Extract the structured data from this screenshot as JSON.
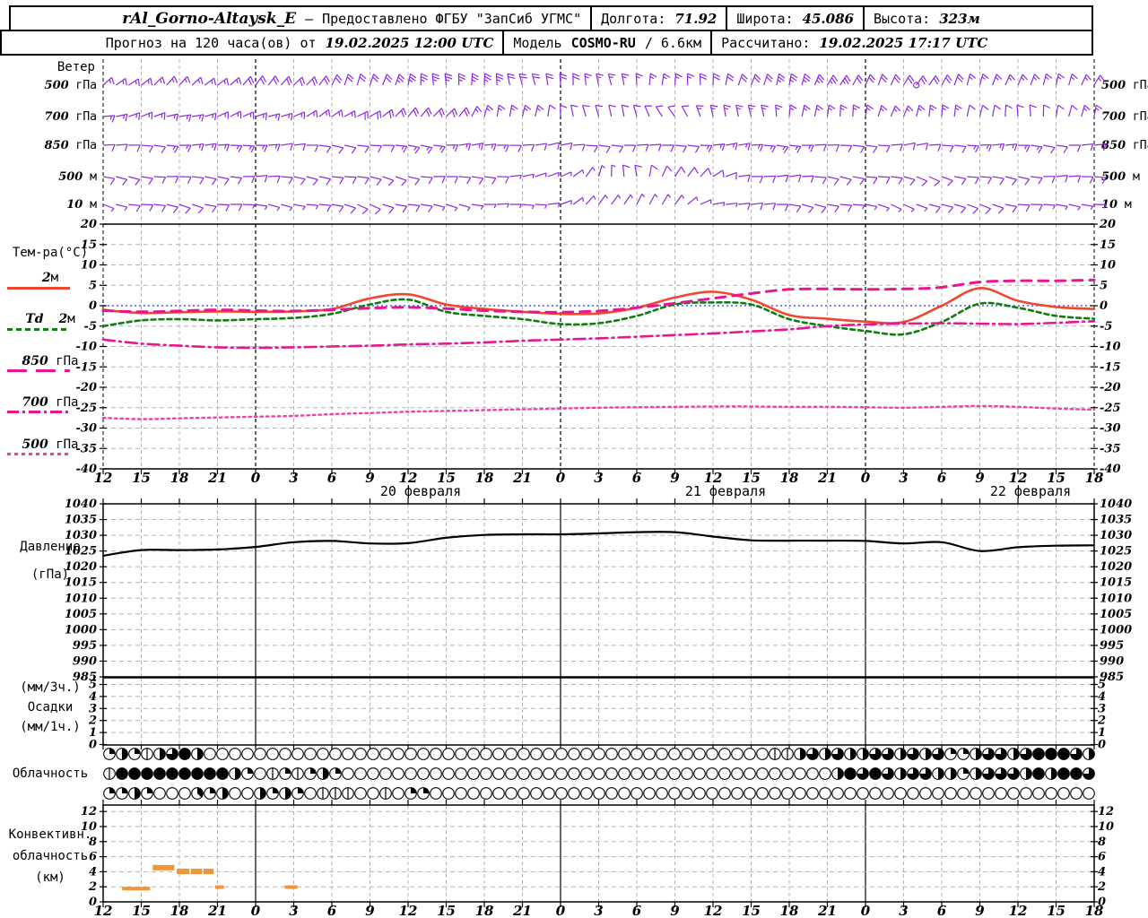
{
  "header": {
    "row1": {
      "station": "rAl_Gorno-Altaysk_E",
      "sep": "—",
      "provider": "Предоставлено ФГБУ \"ЗапСиб УГМС\"",
      "lon_label": "Долгота:",
      "lon": "71.92",
      "lat_label": "Широта:",
      "lat": "45.086",
      "alt_label": "Высота:",
      "alt": "323м"
    },
    "row2": {
      "forecast_label": "Прогноз на 120 часа(ов) от",
      "run_time": "19.02.2025 12:00 UTC",
      "model_label": "Модель",
      "model": "COSMO-RU",
      "model_res": "/ 6.6км",
      "calc_label": "Рассчитано:",
      "calc_time": "19.02.2025 17:17 UTC"
    }
  },
  "panels": {
    "wind": {
      "title": "Ветер",
      "levels": [
        "500 гПа",
        "700 гПа",
        "850 гПа",
        "500 м",
        "10 м"
      ]
    },
    "temp": {
      "title": "Тем-ра(°C)",
      "legend": [
        {
          "pre": "",
          "num": "2",
          "unit": "м"
        },
        {
          "pre": "Td",
          "num": "2",
          "unit": "м"
        },
        {
          "pre": "",
          "num": "850",
          "unit": "гПа"
        },
        {
          "pre": "",
          "num": "700",
          "unit": "гПа"
        },
        {
          "pre": "",
          "num": "500",
          "unit": "гПа"
        }
      ]
    },
    "pressure": {
      "title1": "Давление",
      "title2": "(гПа)"
    },
    "precip": {
      "title1": "(мм/3ч.)",
      "title2": "Осадки",
      "title3": "(мм/1ч.)"
    },
    "cloud": {
      "title": "Облачность"
    },
    "conv": {
      "title1": "Конвективн.",
      "title2": "облачность",
      "title3": "(км)"
    }
  },
  "axis": {
    "hour_labels": [
      "12",
      "15",
      "18",
      "21",
      "0",
      "3",
      "6",
      "9",
      "12",
      "15",
      "18",
      "21",
      "0",
      "3",
      "6",
      "9",
      "12",
      "15",
      "18",
      "21",
      "0",
      "3",
      "6",
      "9",
      "12",
      "15",
      "18"
    ],
    "midnight_indices": [
      4,
      12,
      20
    ],
    "date_labels": [
      {
        "label": "20 февраля",
        "hour": 24
      },
      {
        "label": "21 февраля",
        "hour": 48
      },
      {
        "label": "22 февраля",
        "hour": 72
      }
    ],
    "temp_ticks": [
      20,
      15,
      10,
      5,
      0,
      -5,
      -10,
      -15,
      -20,
      -25,
      -30,
      -35,
      -40
    ],
    "pressure_ticks": [
      1040,
      1035,
      1030,
      1025,
      1020,
      1015,
      1010,
      1005,
      1000,
      995,
      990,
      985
    ],
    "precip_ticks": [
      5,
      4,
      3,
      2,
      1,
      0
    ],
    "conv_ticks": [
      12,
      10,
      8,
      6,
      4,
      2,
      0
    ]
  },
  "colors": {
    "barb": "#8a2be2",
    "t2m": "#f0482c",
    "td2m": "#0f7d0f",
    "pink": "#ea1690",
    "pink_light": "#f23fa5",
    "zero_line": "#4858f8",
    "grid": "#b4b4b4",
    "pressure_line": "#000000",
    "conv_bar": "#f0953a",
    "frame": "#000000"
  },
  "chart_data": [
    {
      "id": "temperature",
      "type": "line",
      "title": "Тем-ра(°C)",
      "ylim": [
        -40,
        20
      ],
      "x_start": "19.02.2025 12:00 UTC",
      "x_step_hours": 3,
      "grid": true,
      "series": [
        {
          "name": "2м",
          "color": "#f0482c",
          "dash": "",
          "width": 2.6,
          "values": [
            -1,
            -1.8,
            -1.6,
            -1.4,
            -1.5,
            -1.4,
            -0.8,
            1.8,
            2.8,
            0.3,
            -0.8,
            -1.5,
            -2,
            -1.9,
            -0.5,
            2,
            3.4,
            1.5,
            -2.3,
            -3.2,
            -3.9,
            -4,
            0,
            4.3,
            1.2,
            -0.3,
            -0.8
          ]
        },
        {
          "name": "Td 2м",
          "color": "#0f7d0f",
          "dash": "5 4",
          "width": 2.6,
          "values": [
            -5,
            -3.6,
            -3.3,
            -3.6,
            -3.3,
            -3,
            -2,
            0.3,
            1.5,
            -1.5,
            -2.5,
            -3.3,
            -4.5,
            -4.3,
            -2.5,
            0.3,
            0.8,
            0.3,
            -3.3,
            -5,
            -6.2,
            -7,
            -4,
            0.5,
            -0.5,
            -2.5,
            -3.2
          ]
        },
        {
          "name": "850 гПа",
          "color": "#ea1690",
          "dash": "11 8",
          "width": 3,
          "values": [
            -1.2,
            -1.5,
            -1.3,
            -1,
            -1.2,
            -1.3,
            -1,
            -0.6,
            -0.4,
            -0.7,
            -1.2,
            -1.5,
            -1.6,
            -1.3,
            -0.5,
            0.6,
            1.8,
            3,
            4,
            4.1,
            4,
            4.1,
            4.5,
            5.8,
            6.1,
            6.1,
            6.3
          ]
        },
        {
          "name": "700 гПа",
          "color": "#ea1690",
          "dash": "13 5 2 5",
          "width": 2.6,
          "values": [
            -8.3,
            -9.3,
            -9.8,
            -10.2,
            -10.3,
            -10.2,
            -10,
            -9.8,
            -9.5,
            -9.3,
            -9,
            -8.6,
            -8.3,
            -8,
            -7.6,
            -7.2,
            -6.8,
            -6.3,
            -5.8,
            -5,
            -4.6,
            -4.4,
            -4.3,
            -4.4,
            -4.5,
            -4.2,
            -3.8
          ]
        },
        {
          "name": "500 гПа",
          "color": "#f23fa5",
          "dash": "2.5 4",
          "width": 2.4,
          "values": [
            -27.5,
            -27.8,
            -27.6,
            -27.4,
            -27.2,
            -27,
            -26.6,
            -26.3,
            -26,
            -25.8,
            -25.6,
            -25.4,
            -25.2,
            -25,
            -24.9,
            -24.8,
            -24.7,
            -24.7,
            -24.8,
            -24.8,
            -24.9,
            -25,
            -24.8,
            -24.6,
            -24.8,
            -25.2,
            -25.5
          ]
        }
      ]
    },
    {
      "id": "pressure",
      "type": "line",
      "title": "Давление (гПа)",
      "ylim": [
        985,
        1040
      ],
      "x_step_hours": 3,
      "values": [
        1023.5,
        1025.3,
        1025.3,
        1025.5,
        1026.3,
        1027.8,
        1028.2,
        1027.4,
        1027.5,
        1029.2,
        1030.1,
        1030.3,
        1030.3,
        1030.6,
        1031,
        1031,
        1029.6,
        1028.4,
        1028.3,
        1028.3,
        1028.2,
        1027.4,
        1027.8,
        1025,
        1026.2,
        1026.7,
        1026.8
      ]
    },
    {
      "id": "precip",
      "type": "bar",
      "title": "Осадки (мм/3ч.) (мм/1ч.)",
      "ylim": [
        0,
        5
      ],
      "values_3h": [],
      "values_1h": []
    },
    {
      "id": "cloud",
      "type": "symbols",
      "title": "Облачность",
      "unit": "eighths",
      "rows": [
        {
          "name": "row1",
          "oktas": [
            2,
            4,
            2,
            1,
            4,
            6,
            8,
            4,
            0,
            0,
            0,
            0,
            0,
            0,
            0,
            0,
            0,
            0,
            0,
            0,
            0,
            0,
            0,
            0,
            0,
            0,
            0,
            0,
            0,
            0,
            0,
            0,
            0,
            0,
            0,
            0,
            0,
            0,
            0,
            0,
            0,
            0,
            0,
            0,
            0,
            0,
            0,
            0,
            0,
            0,
            0,
            0,
            0,
            1,
            1,
            4,
            6,
            4,
            6,
            4,
            4,
            6,
            6,
            4,
            6,
            4,
            6,
            2,
            2,
            4,
            6,
            6,
            4,
            6,
            8,
            8,
            8,
            6,
            4
          ]
        },
        {
          "name": "row2",
          "oktas": [
            1,
            8,
            8,
            8,
            8,
            8,
            8,
            8,
            8,
            8,
            4,
            2,
            0,
            1,
            2,
            1,
            2,
            4,
            2,
            0,
            0,
            0,
            0,
            0,
            0,
            0,
            0,
            0,
            0,
            0,
            0,
            0,
            0,
            0,
            0,
            0,
            0,
            0,
            0,
            0,
            0,
            0,
            0,
            0,
            0,
            0,
            0,
            0,
            0,
            0,
            0,
            0,
            0,
            0,
            0,
            0,
            0,
            0,
            4,
            8,
            6,
            8,
            6,
            4,
            6,
            6,
            4,
            4,
            2,
            4,
            6,
            6,
            6,
            4,
            8,
            4,
            8,
            8,
            6
          ]
        },
        {
          "name": "row3",
          "oktas": [
            2,
            2,
            4,
            2,
            0,
            0,
            0,
            3,
            2,
            4,
            0,
            0,
            4,
            2,
            4,
            2,
            0,
            1,
            1,
            1,
            0,
            0,
            1,
            0,
            2,
            2,
            0,
            0,
            0,
            0,
            0,
            0,
            0,
            0,
            0,
            0,
            0,
            0,
            0,
            0,
            0,
            0,
            0,
            0,
            0,
            0,
            0,
            0,
            0,
            0,
            0,
            0,
            0,
            0,
            0,
            0,
            0,
            0,
            0,
            0,
            0,
            0,
            0,
            0,
            0,
            0,
            0,
            0,
            0,
            0,
            0,
            0,
            0,
            0,
            0,
            0,
            0,
            0,
            0
          ]
        }
      ]
    },
    {
      "id": "convective",
      "type": "bar",
      "title": "Конвективн. облачность (км)",
      "ylim": [
        0,
        12
      ],
      "bars": [
        {
          "h0": 1.5,
          "h1": 3.7,
          "top": 2.0,
          "thick": false
        },
        {
          "h0": 3.9,
          "h1": 5.6,
          "top": 4.9,
          "thick": true
        },
        {
          "h0": 5.8,
          "h1": 6.8,
          "top": 4.4,
          "thick": true
        },
        {
          "h0": 6.9,
          "h1": 7.8,
          "top": 4.4,
          "thick": true
        },
        {
          "h0": 7.9,
          "h1": 8.7,
          "top": 4.4,
          "thick": true
        },
        {
          "h0": 8.8,
          "h1": 9.5,
          "top": 2.2,
          "thick": false
        },
        {
          "h0": 14.3,
          "h1": 15.3,
          "top": 2.2,
          "thick": false
        }
      ]
    },
    {
      "id": "wind",
      "type": "wind-barbs",
      "title": "Ветер",
      "levels": [
        "500 гПа",
        "700 гПа",
        "850 гПа",
        "500 м",
        "10 м"
      ],
      "dirs": [
        [
          48,
          50,
          48,
          46,
          44,
          40,
          30,
          18,
          8,
          0,
          355,
          352,
          350,
          352,
          356,
          2,
          8,
          14,
          18,
          24,
          28,
          30,
          26,
          20,
          16,
          20,
          24
        ],
        [
          78,
          76,
          74,
          72,
          70,
          66,
          60,
          54,
          48,
          38,
          22,
          10,
          358,
          348,
          338,
          332,
          340,
          352,
          2,
          8,
          12,
          16,
          12,
          6,
          2,
          6,
          10
        ],
        [
          94,
          90,
          92,
          88,
          86,
          90,
          95,
          100,
          96,
          90,
          86,
          82,
          86,
          90,
          94,
          90,
          86,
          88,
          92,
          95,
          90,
          86,
          88,
          90,
          92,
          94,
          90
        ],
        [
          100,
          96,
          98,
          94,
          92,
          96,
          100,
          104,
          100,
          96,
          90,
          86,
          60,
          20,
          350,
          30,
          62,
          82,
          90,
          96,
          100,
          104,
          108,
          100,
          96,
          92,
          88
        ],
        [
          104,
          100,
          102,
          98,
          96,
          100,
          104,
          108,
          104,
          100,
          96,
          92,
          70,
          40,
          20,
          45,
          72,
          90,
          96,
          100,
          104,
          108,
          112,
          104,
          100,
          96,
          92
        ]
      ],
      "spds": [
        [
          15,
          15,
          15,
          15,
          20,
          20,
          20,
          20,
          25,
          25,
          25,
          20,
          20,
          15,
          15,
          15,
          20,
          20,
          25,
          25,
          20,
          20,
          20,
          15,
          15,
          15,
          15
        ],
        [
          15,
          15,
          15,
          15,
          15,
          15,
          15,
          20,
          20,
          20,
          15,
          15,
          10,
          10,
          10,
          10,
          15,
          15,
          15,
          15,
          15,
          15,
          15,
          10,
          10,
          10,
          15
        ],
        [
          10,
          10,
          15,
          15,
          15,
          10,
          10,
          10,
          15,
          15,
          15,
          10,
          10,
          10,
          10,
          10,
          15,
          15,
          15,
          10,
          10,
          10,
          10,
          15,
          15,
          10,
          10
        ],
        [
          10,
          10,
          10,
          10,
          10,
          10,
          10,
          10,
          10,
          10,
          10,
          5,
          5,
          5,
          10,
          10,
          10,
          10,
          10,
          10,
          10,
          10,
          10,
          10,
          10,
          10,
          10
        ],
        [
          5,
          10,
          10,
          10,
          5,
          5,
          10,
          10,
          10,
          5,
          5,
          5,
          5,
          5,
          5,
          5,
          5,
          10,
          10,
          10,
          5,
          5,
          10,
          10,
          10,
          5,
          5
        ]
      ],
      "calm": [
        {
          "level": 0,
          "hour": 64
        }
      ]
    }
  ]
}
